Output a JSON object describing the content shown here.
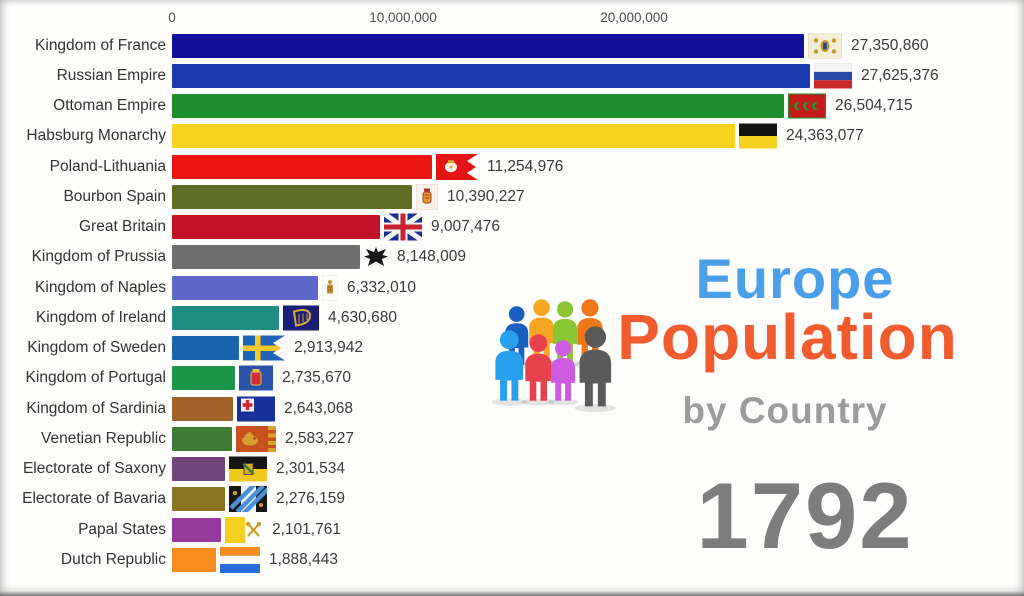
{
  "chart_data": {
    "type": "bar",
    "orientation": "horizontal",
    "title": "Europe Population by Country",
    "year": "1792",
    "grid": false,
    "legend": false,
    "x_axis": {
      "ticks": [
        "0",
        "10,000,000",
        "20,000,000"
      ],
      "tick_values": [
        0,
        10000000,
        20000000
      ],
      "axis_position": "top",
      "approx_max": 36800000
    },
    "rows": [
      {
        "label": "Kingdom of France",
        "value": 27350860,
        "value_text": "27,350,860",
        "color": "#10109b",
        "flag": "kingdom-of-france-flag"
      },
      {
        "label": "Russian Empire",
        "value": 27625376,
        "value_text": "27,625,376",
        "color": "#1b3ab0",
        "flag": "russian-empire-flag"
      },
      {
        "label": "Ottoman Empire",
        "value": 26504715,
        "value_text": "26,504,715",
        "color": "#1e8c2d",
        "flag": "ottoman-empire-flag"
      },
      {
        "label": "Habsburg Monarchy",
        "value": 24363077,
        "value_text": "24,363,077",
        "color": "#f7d21e",
        "flag": "habsburg-monarchy-flag"
      },
      {
        "label": "Poland-Lithuania",
        "value": 11254976,
        "value_text": "11,254,976",
        "color": "#ec1313",
        "flag": "poland-lithuania-flag"
      },
      {
        "label": "Bourbon Spain",
        "value": 10390227,
        "value_text": "10,390,227",
        "color": "#5f6e24",
        "flag": "bourbon-spain-flag"
      },
      {
        "label": "Great Britain",
        "value": 9007476,
        "value_text": "9,007,476",
        "color": "#c11228",
        "flag": "great-britain-flag"
      },
      {
        "label": "Kingdom of Prussia",
        "value": 8148009,
        "value_text": "8,148,009",
        "color": "#6f6f6f",
        "flag": "kingdom-of-prussia-flag"
      },
      {
        "label": "Kingdom of Naples",
        "value": 6332010,
        "value_text": "6,332,010",
        "color": "#5e68c8",
        "flag": "kingdom-of-naples-flag"
      },
      {
        "label": "Kingdom of Ireland",
        "value": 4630680,
        "value_text": "4,630,680",
        "color": "#218c82",
        "flag": "kingdom-of-ireland-flag"
      },
      {
        "label": "Kingdom of Sweden",
        "value": 2913942,
        "value_text": "2,913,942",
        "color": "#1a64ad",
        "flag": "kingdom-of-sweden-flag"
      },
      {
        "label": "Kingdom of Portugal",
        "value": 2735670,
        "value_text": "2,735,670",
        "color": "#1b9648",
        "flag": "kingdom-of-portugal-flag"
      },
      {
        "label": "Kingdom of Sardinia",
        "value": 2643068,
        "value_text": "2,643,068",
        "color": "#a0642a",
        "flag": "kingdom-of-sardinia-flag"
      },
      {
        "label": "Venetian Republic",
        "value": 2583227,
        "value_text": "2,583,227",
        "color": "#3e7c36",
        "flag": "venetian-republic-flag"
      },
      {
        "label": "Electorate of Saxony",
        "value": 2301534,
        "value_text": "2,301,534",
        "color": "#70457a",
        "flag": "electorate-of-saxony-flag"
      },
      {
        "label": "Electorate of Bavaria",
        "value": 2276159,
        "value_text": "2,276,159",
        "color": "#877522",
        "flag": "electorate-of-bavaria-flag"
      },
      {
        "label": "Papal States",
        "value": 2101761,
        "value_text": "2,101,761",
        "color": "#953a9b",
        "flag": "papal-states-flag"
      },
      {
        "label": "Dutch Republic",
        "value": 1888443,
        "value_text": "1,888,443",
        "color": "#f78c1e",
        "flag": "dutch-republic-flag"
      }
    ]
  },
  "branding": {
    "line1": "Europe",
    "line2": "Population",
    "line3": "by Country",
    "people_icon": "people-group-icon",
    "colors": {
      "line1": "#4b9fe8",
      "line2": "#f15b2d",
      "line3": "#9c9c9c",
      "year": "#7d7d7d"
    }
  },
  "year_display": "1792"
}
